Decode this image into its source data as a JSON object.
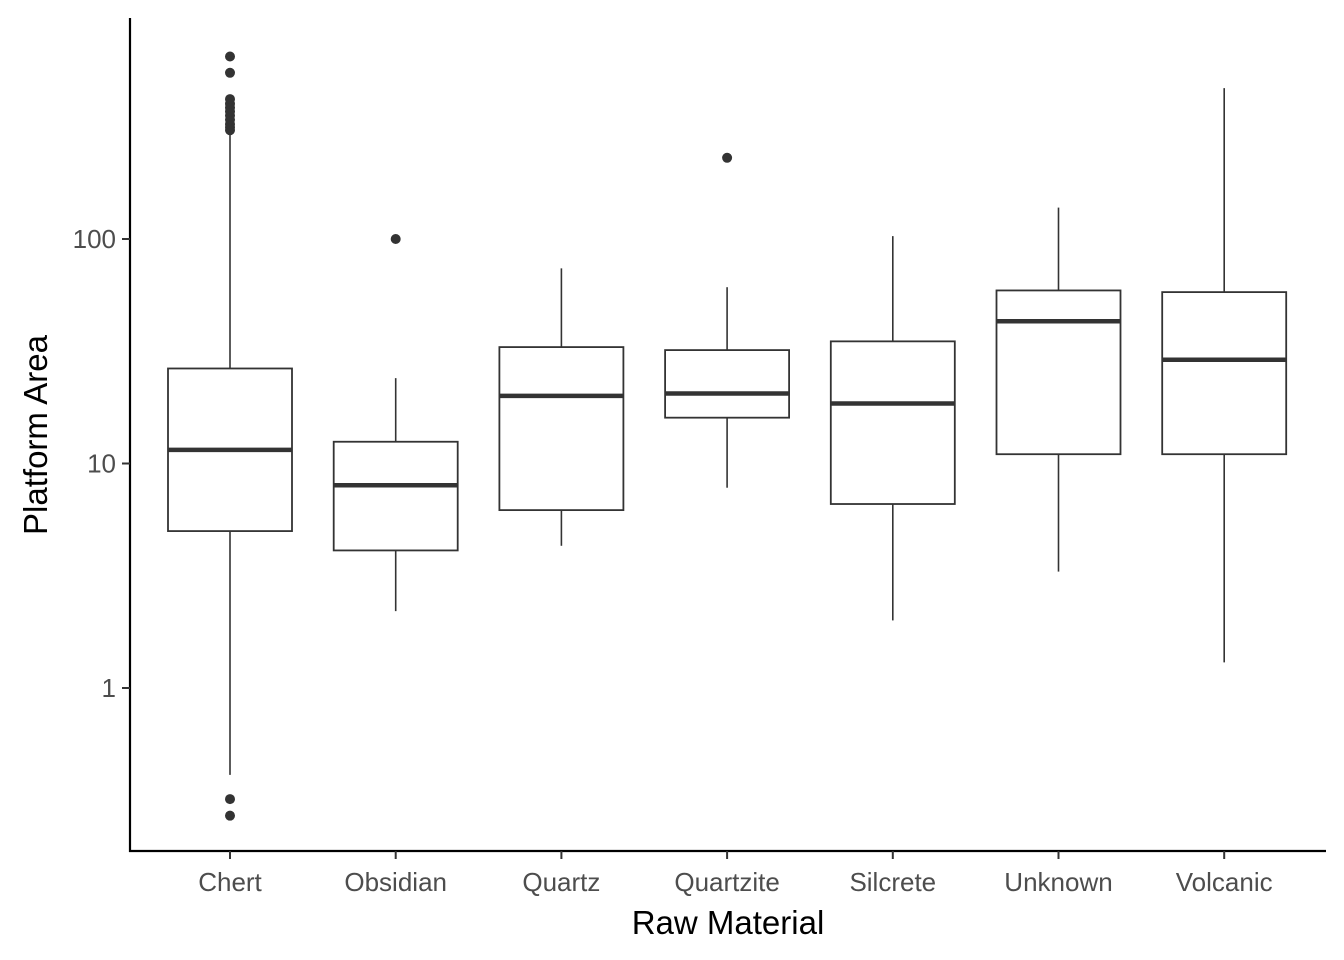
{
  "chart_data": {
    "type": "boxplot",
    "xlabel": "Raw Material",
    "ylabel": "Platform Area",
    "yscale": "log10",
    "ylim": [
      0.2,
      900
    ],
    "yticks": [
      1,
      10,
      100
    ],
    "ytick_labels": [
      "1",
      "10",
      "100"
    ],
    "grid": false,
    "categories": [
      "Chert",
      "Obsidian",
      "Quartz",
      "Quartzite",
      "Silcrete",
      "Unknown",
      "Volcanic"
    ],
    "boxes": [
      {
        "category": "Chert",
        "whisker_low": 0.41,
        "q1": 5.0,
        "median": 11.5,
        "q3": 26.5,
        "whisker_high": 300,
        "outliers": [
          0.27,
          0.32,
          305,
          315,
          325,
          340,
          355,
          370,
          385,
          400,
          420,
          550,
          650
        ]
      },
      {
        "category": "Obsidian",
        "whisker_low": 2.2,
        "q1": 4.1,
        "median": 8.0,
        "q3": 12.5,
        "whisker_high": 24,
        "outliers": [
          100
        ]
      },
      {
        "category": "Quartz",
        "whisker_low": 4.3,
        "q1": 6.2,
        "median": 20,
        "q3": 33,
        "whisker_high": 74,
        "outliers": []
      },
      {
        "category": "Quartzite",
        "whisker_low": 7.8,
        "q1": 16,
        "median": 20.5,
        "q3": 32,
        "whisker_high": 61,
        "outliers": [
          230
        ]
      },
      {
        "category": "Silcrete",
        "whisker_low": 2.0,
        "q1": 6.6,
        "median": 18.5,
        "q3": 35,
        "whisker_high": 103,
        "outliers": []
      },
      {
        "category": "Unknown",
        "whisker_low": 3.3,
        "q1": 11,
        "median": 43,
        "q3": 59,
        "whisker_high": 138,
        "outliers": []
      },
      {
        "category": "Volcanic",
        "whisker_low": 1.3,
        "q1": 11,
        "median": 29,
        "q3": 58,
        "whisker_high": 470,
        "outliers": []
      }
    ],
    "colors": {
      "box_line": "#333333",
      "median": "#333333",
      "outlier": "#333333",
      "axis": "#000000"
    }
  }
}
